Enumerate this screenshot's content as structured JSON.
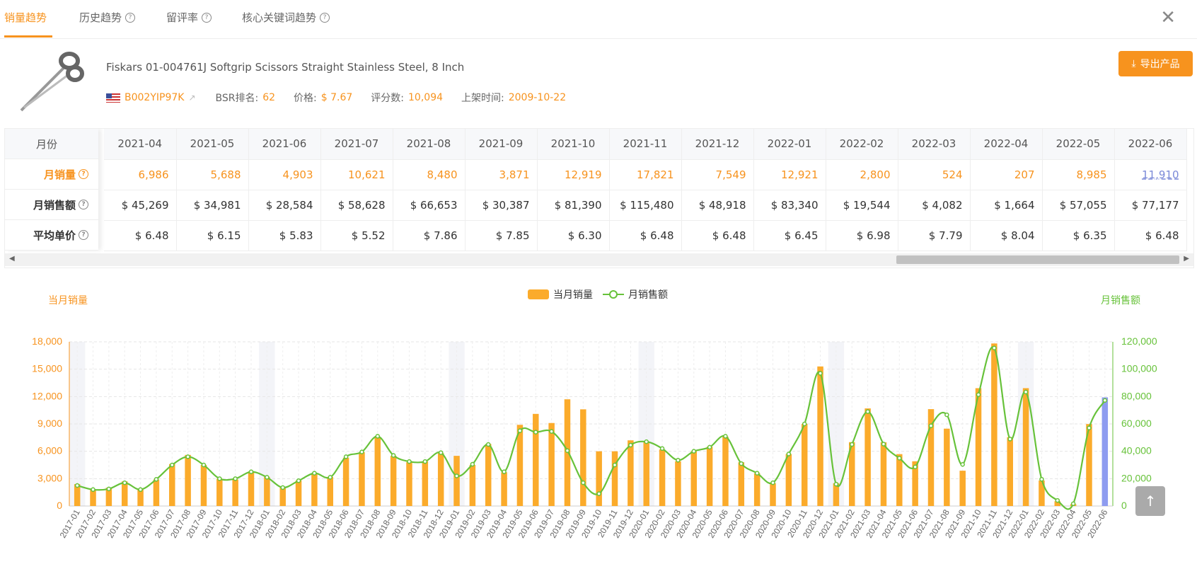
{
  "tabs": [
    {
      "label": "销量趋势",
      "active": true
    },
    {
      "label": "历史趋势",
      "help": true
    },
    {
      "label": "留评率",
      "help": true
    },
    {
      "label": "核心关键词趋势",
      "help": true
    }
  ],
  "product": {
    "title": "Fiskars 01-004761J Softgrip Scissors Straight Stainless Steel, 8 Inch",
    "asin": "B002YIP97K",
    "bsr_label": "BSR排名:",
    "bsr": "62",
    "price_label": "价格:",
    "price": "$ 7.67",
    "rating_label": "评分数:",
    "rating_count": "10,094",
    "listed_label": "上架时间:",
    "listed": "2009-10-22"
  },
  "export_label": "导出产品",
  "table": {
    "row_headers": [
      "月份",
      "月销量",
      "月销售额",
      "平均单价"
    ],
    "months": [
      "2021-04",
      "2021-05",
      "2021-06",
      "2021-07",
      "2021-08",
      "2021-09",
      "2021-10",
      "2021-11",
      "2021-12",
      "2022-01",
      "2022-02",
      "2022-03",
      "2022-04",
      "2022-05",
      "2022-06"
    ],
    "sales": [
      "6,986",
      "5,688",
      "4,903",
      "10,621",
      "8,480",
      "3,871",
      "12,919",
      "17,821",
      "7,549",
      "12,921",
      "2,800",
      "524",
      "207",
      "8,985",
      "11,910"
    ],
    "revenue": [
      "$ 45,269",
      "$ 34,981",
      "$ 28,584",
      "$ 58,628",
      "$ 66,653",
      "$ 30,387",
      "$ 81,390",
      "$ 115,480",
      "$ 48,918",
      "$ 83,340",
      "$ 19,544",
      "$ 4,082",
      "$ 1,664",
      "$ 57,055",
      "$ 77,177"
    ],
    "avg_price": [
      "$ 6.48",
      "$ 6.15",
      "$ 5.83",
      "$ 5.52",
      "$ 7.86",
      "$ 7.85",
      "$ 6.30",
      "$ 6.48",
      "$ 6.48",
      "$ 6.45",
      "$ 6.98",
      "$ 7.79",
      "$ 8.04",
      "$ 6.35",
      "$ 6.48"
    ]
  },
  "chart_data": {
    "type": "bar+line",
    "legend": [
      "当月销量",
      "月销售额"
    ],
    "ylabel_left": "当月销量",
    "ylabel_right": "月销售额",
    "ylim_left": [
      0,
      18000
    ],
    "ylim_right": [
      0,
      120000
    ],
    "yticks_left": [
      "0",
      "3,000",
      "6,000",
      "9,000",
      "12,000",
      "15,000",
      "18,000"
    ],
    "yticks_right": [
      "0",
      "20,000",
      "40,000",
      "60,000",
      "80,000",
      "100,000",
      "120,000"
    ],
    "x": [
      "2017-01",
      "2017-02",
      "2017-03",
      "2017-04",
      "2017-05",
      "2017-06",
      "2017-07",
      "2017-08",
      "2017-09",
      "2017-10",
      "2017-11",
      "2017-12",
      "2018-01",
      "2018-02",
      "2018-03",
      "2018-04",
      "2018-05",
      "2018-06",
      "2018-07",
      "2018-08",
      "2018-09",
      "2018-10",
      "2018-11",
      "2018-12",
      "2019-01",
      "2019-02",
      "2019-03",
      "2019-04",
      "2019-05",
      "2019-06",
      "2019-07",
      "2019-08",
      "2019-09",
      "2019-10",
      "2019-11",
      "2019-12",
      "2020-01",
      "2020-02",
      "2020-03",
      "2020-04",
      "2020-05",
      "2020-06",
      "2020-07",
      "2020-08",
      "2020-09",
      "2020-10",
      "2020-11",
      "2020-12",
      "2021-01",
      "2021-02",
      "2021-03",
      "2021-04",
      "2021-05",
      "2021-06",
      "2021-07",
      "2021-08",
      "2021-09",
      "2021-10",
      "2021-11",
      "2021-12",
      "2022-01",
      "2022-02",
      "2022-03",
      "2022-04",
      "2022-05",
      "2022-06"
    ],
    "series": [
      {
        "name": "当月销量",
        "values": [
          2400,
          1800,
          2000,
          2700,
          1800,
          2900,
          4600,
          5600,
          4500,
          3000,
          2900,
          3800,
          3200,
          2000,
          2800,
          3600,
          3200,
          5300,
          5900,
          7600,
          5500,
          4800,
          4900,
          5800,
          5500,
          4500,
          6800,
          3700,
          8900,
          10100,
          9100,
          11700,
          10600,
          6000,
          6000,
          7200,
          7000,
          6200,
          4900,
          6000,
          6500,
          7600,
          4800,
          3600,
          2500,
          5700,
          9000,
          15300,
          2500,
          7000,
          10700,
          6986,
          5688,
          4903,
          10621,
          8480,
          3871,
          12919,
          17821,
          7549,
          12921,
          2800,
          524,
          207,
          8985,
          11910
        ]
      },
      {
        "name": "月销售额",
        "values": [
          15000,
          12000,
          12500,
          17000,
          12000,
          19500,
          30000,
          36000,
          30000,
          20000,
          20000,
          25000,
          21000,
          13500,
          18500,
          24000,
          21000,
          36000,
          39500,
          51000,
          37000,
          32500,
          32500,
          39000,
          22000,
          30500,
          45000,
          25000,
          55000,
          54000,
          54500,
          40500,
          17000,
          9000,
          30000,
          44500,
          47000,
          42000,
          33500,
          40000,
          43000,
          51000,
          31000,
          24000,
          17000,
          38000,
          60000,
          97000,
          16000,
          45000,
          69000,
          45269,
          34981,
          28584,
          58628,
          66653,
          30387,
          81390,
          115480,
          48918,
          83340,
          19544,
          4082,
          1664,
          57055,
          77177
        ]
      }
    ],
    "colors": {
      "bar": "#fbab2b",
      "line": "#67c23a",
      "highlight": "#8e9cf0"
    }
  }
}
